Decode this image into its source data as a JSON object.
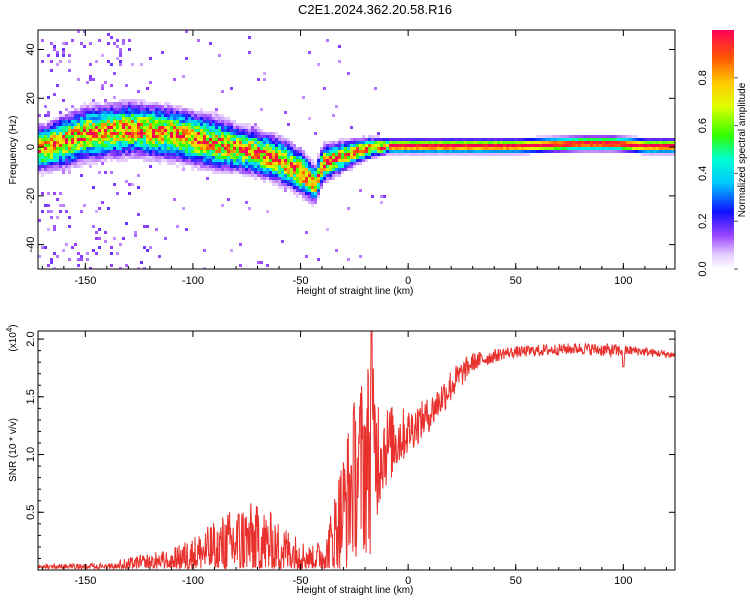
{
  "title": "C2E1.2024.362.20.58.R16",
  "chart_data": [
    {
      "type": "heatmap",
      "xlabel": "Height of straight line (km)",
      "ylabel": "Frequency (Hz)",
      "xlim": [
        -172,
        124
      ],
      "ylim": [
        -50,
        48
      ],
      "xticks": [
        "-150",
        "-100",
        "-50",
        "0",
        "50",
        "100"
      ],
      "xtick_values": [
        -150,
        -100,
        -50,
        0,
        50,
        100
      ],
      "yticks": [
        "40",
        "20",
        "0",
        "-20",
        "-40"
      ],
      "ytick_values": [
        40,
        20,
        0,
        -20,
        -40
      ],
      "ridge": [
        {
          "x": -170,
          "y": 0,
          "w": 6
        },
        {
          "x": -160,
          "y": 3,
          "w": 7
        },
        {
          "x": -150,
          "y": 6,
          "w": 7
        },
        {
          "x": -140,
          "y": 7,
          "w": 7
        },
        {
          "x": -130,
          "y": 8,
          "w": 7
        },
        {
          "x": -120,
          "y": 7,
          "w": 7
        },
        {
          "x": -110,
          "y": 6,
          "w": 7
        },
        {
          "x": -100,
          "y": 4,
          "w": 7
        },
        {
          "x": -90,
          "y": 2,
          "w": 7
        },
        {
          "x": -80,
          "y": 0,
          "w": 6
        },
        {
          "x": -70,
          "y": -2,
          "w": 6
        },
        {
          "x": -60,
          "y": -5,
          "w": 6
        },
        {
          "x": -50,
          "y": -10,
          "w": 6
        },
        {
          "x": -44,
          "y": -15,
          "w": 5
        },
        {
          "x": -40,
          "y": -6,
          "w": 5
        },
        {
          "x": -30,
          "y": -3,
          "w": 4
        },
        {
          "x": -20,
          "y": 0,
          "w": 3
        },
        {
          "x": -10,
          "y": 1,
          "w": 2
        },
        {
          "x": 0,
          "y": 1,
          "w": 2
        },
        {
          "x": 20,
          "y": 1,
          "w": 2
        },
        {
          "x": 50,
          "y": 1,
          "w": 2
        },
        {
          "x": 80,
          "y": 2,
          "w": 2
        },
        {
          "x": 95,
          "y": 2,
          "w": 2
        },
        {
          "x": 110,
          "y": 1,
          "w": 2
        },
        {
          "x": 124,
          "y": 1,
          "w": 2
        }
      ],
      "colorbar": {
        "label": "Normalized spectral amplitude",
        "ticks": [
          "0.0",
          "0.2",
          "0.4",
          "0.6",
          "0.8"
        ],
        "tick_values": [
          0.0,
          0.2,
          0.4,
          0.6,
          0.8
        ],
        "range": [
          0,
          1
        ]
      }
    },
    {
      "type": "line",
      "xlabel": "Height of straight line (km)",
      "ylabel": "SNR (10 * v/v)",
      "yscale_label": "(x10",
      "yscale_exp": "4",
      "xlim": [
        -172,
        124
      ],
      "ylim": [
        0,
        2.07
      ],
      "xticks": [
        "-150",
        "-100",
        "-50",
        "0",
        "50",
        "100"
      ],
      "xtick_values": [
        -150,
        -100,
        -50,
        0,
        50,
        100
      ],
      "yticks": [
        "2.0",
        "1.5",
        "1.0",
        "0.5"
      ],
      "ytick_values": [
        2.0,
        1.5,
        1.0,
        0.5
      ],
      "series": [
        {
          "color": "#e8302c",
          "envelope": [
            {
              "x": -172,
              "base": 0.02,
              "amp": 0.03
            },
            {
              "x": -140,
              "base": 0.03,
              "amp": 0.03
            },
            {
              "x": -125,
              "base": 0.05,
              "amp": 0.08
            },
            {
              "x": -110,
              "base": 0.08,
              "amp": 0.1
            },
            {
              "x": -95,
              "base": 0.15,
              "amp": 0.2
            },
            {
              "x": -85,
              "base": 0.2,
              "amp": 0.3
            },
            {
              "x": -75,
              "base": 0.25,
              "amp": 0.35
            },
            {
              "x": -65,
              "base": 0.22,
              "amp": 0.3
            },
            {
              "x": -55,
              "base": 0.15,
              "amp": 0.2
            },
            {
              "x": -45,
              "base": 0.1,
              "amp": 0.1
            },
            {
              "x": -38,
              "base": 0.12,
              "amp": 0.2
            },
            {
              "x": -32,
              "base": 0.4,
              "amp": 0.5
            },
            {
              "x": -25,
              "base": 0.8,
              "amp": 0.7
            },
            {
              "x": -18,
              "base": 1.0,
              "amp": 0.9
            },
            {
              "x": -12,
              "base": 1.05,
              "amp": 0.4
            },
            {
              "x": 0,
              "base": 1.2,
              "amp": 0.2
            },
            {
              "x": 10,
              "base": 1.35,
              "amp": 0.15
            },
            {
              "x": 20,
              "base": 1.6,
              "amp": 0.15
            },
            {
              "x": 30,
              "base": 1.8,
              "amp": 0.08
            },
            {
              "x": 45,
              "base": 1.88,
              "amp": 0.05
            },
            {
              "x": 60,
              "base": 1.9,
              "amp": 0.05
            },
            {
              "x": 80,
              "base": 1.92,
              "amp": 0.05
            },
            {
              "x": 95,
              "base": 1.9,
              "amp": 0.06
            },
            {
              "x": 105,
              "base": 1.9,
              "amp": 0.04
            },
            {
              "x": 124,
              "base": 1.86,
              "amp": 0.03
            }
          ]
        }
      ]
    }
  ]
}
